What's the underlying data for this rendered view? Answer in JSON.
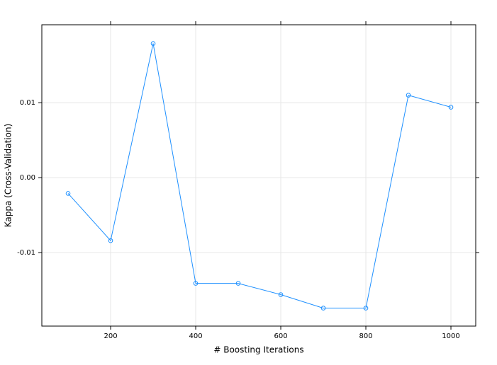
{
  "chart_data": {
    "type": "line",
    "x_label": "# Boosting Iterations",
    "y_label": "Kappa (Cross-Validation)",
    "x": [
      100,
      200,
      300,
      400,
      500,
      600,
      700,
      800,
      900,
      1000
    ],
    "values": [
      -0.0021,
      -0.0084,
      0.0179,
      -0.0141,
      -0.0141,
      -0.0156,
      -0.0174,
      -0.0174,
      0.011,
      0.0094
    ],
    "color": "#1e90ff",
    "xlim": [
      38.3,
      1058.3
    ],
    "ylim": [
      -0.0198,
      0.0204
    ],
    "xticks": [
      200,
      400,
      600,
      800,
      1000
    ],
    "yticks": [
      -0.01,
      {
        "value": 0,
        "label": "0.00"
      },
      0.01
    ],
    "grid": true
  }
}
